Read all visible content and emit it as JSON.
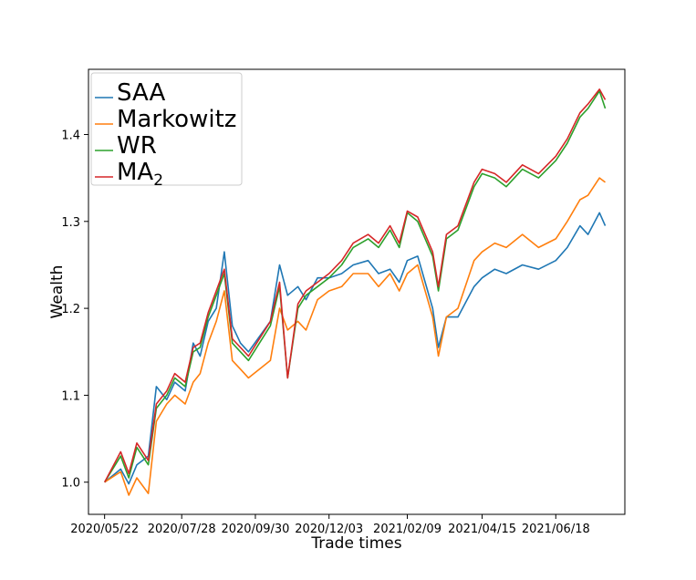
{
  "chart_data": {
    "type": "line",
    "xlabel": "Trade times",
    "ylabel": "Wealth",
    "x_ticks": [
      "2020/05/22",
      "2020/07/28",
      "2020/09/30",
      "2020/12/03",
      "2021/02/09",
      "2021/04/15",
      "2021/06/18"
    ],
    "y_ticks": [
      "1.0",
      "1.1",
      "1.2",
      "1.3",
      "1.4"
    ],
    "ylim": [
      0.963,
      1.475
    ],
    "xlim": [
      "2020/05/08",
      "2021/08/17"
    ],
    "grid": false,
    "legend_position": "top-left",
    "series": [
      {
        "name": "SAA",
        "sub": "",
        "color": "#1f77b4",
        "points": [
          [
            "2020/05/22",
            1.0
          ],
          [
            "2020/06/05",
            1.015
          ],
          [
            "2020/06/12",
            0.998
          ],
          [
            "2020/06/19",
            1.02
          ],
          [
            "2020/06/29",
            1.03
          ],
          [
            "2020/07/06",
            1.11
          ],
          [
            "2020/07/15",
            1.095
          ],
          [
            "2020/07/22",
            1.115
          ],
          [
            "2020/07/31",
            1.105
          ],
          [
            "2020/08/07",
            1.16
          ],
          [
            "2020/08/13",
            1.145
          ],
          [
            "2020/08/20",
            1.185
          ],
          [
            "2020/08/27",
            1.2
          ],
          [
            "2020/09/03",
            1.265
          ],
          [
            "2020/09/10",
            1.18
          ],
          [
            "2020/09/17",
            1.16
          ],
          [
            "2020/09/24",
            1.15
          ],
          [
            "2020/10/13",
            1.185
          ],
          [
            "2020/10/21",
            1.25
          ],
          [
            "2020/10/28",
            1.215
          ],
          [
            "2020/11/06",
            1.225
          ],
          [
            "2020/11/13",
            1.21
          ],
          [
            "2020/11/23",
            1.235
          ],
          [
            "2020/12/03",
            1.235
          ],
          [
            "2020/12/14",
            1.24
          ],
          [
            "2020/12/24",
            1.25
          ],
          [
            "2021/01/06",
            1.255
          ],
          [
            "2021/01/15",
            1.24
          ],
          [
            "2021/01/25",
            1.245
          ],
          [
            "2021/02/02",
            1.23
          ],
          [
            "2021/02/09",
            1.255
          ],
          [
            "2021/02/18",
            1.26
          ],
          [
            "2021/03/03",
            1.2
          ],
          [
            "2021/03/08",
            1.155
          ],
          [
            "2021/03/15",
            1.19
          ],
          [
            "2021/03/25",
            1.19
          ],
          [
            "2021/04/08",
            1.225
          ],
          [
            "2021/04/15",
            1.235
          ],
          [
            "2021/04/26",
            1.245
          ],
          [
            "2021/05/06",
            1.24
          ],
          [
            "2021/05/20",
            1.25
          ],
          [
            "2021/06/03",
            1.245
          ],
          [
            "2021/06/18",
            1.255
          ],
          [
            "2021/06/28",
            1.27
          ],
          [
            "2021/07/09",
            1.295
          ],
          [
            "2021/07/16",
            1.285
          ],
          [
            "2021/07/26",
            1.31
          ],
          [
            "2021/07/31",
            1.295
          ]
        ]
      },
      {
        "name": "Markowitz",
        "sub": "",
        "color": "#ff7f0e",
        "points": [
          [
            "2020/05/22",
            1.0
          ],
          [
            "2020/06/05",
            1.012
          ],
          [
            "2020/06/12",
            0.985
          ],
          [
            "2020/06/19",
            1.005
          ],
          [
            "2020/06/29",
            0.987
          ],
          [
            "2020/07/06",
            1.07
          ],
          [
            "2020/07/15",
            1.09
          ],
          [
            "2020/07/22",
            1.1
          ],
          [
            "2020/07/31",
            1.09
          ],
          [
            "2020/08/07",
            1.115
          ],
          [
            "2020/08/13",
            1.125
          ],
          [
            "2020/08/20",
            1.16
          ],
          [
            "2020/08/27",
            1.185
          ],
          [
            "2020/09/03",
            1.22
          ],
          [
            "2020/09/10",
            1.14
          ],
          [
            "2020/09/17",
            1.13
          ],
          [
            "2020/09/24",
            1.12
          ],
          [
            "2020/10/13",
            1.14
          ],
          [
            "2020/10/21",
            1.2
          ],
          [
            "2020/10/28",
            1.175
          ],
          [
            "2020/11/06",
            1.185
          ],
          [
            "2020/11/13",
            1.175
          ],
          [
            "2020/11/23",
            1.21
          ],
          [
            "2020/12/03",
            1.22
          ],
          [
            "2020/12/14",
            1.225
          ],
          [
            "2020/12/24",
            1.24
          ],
          [
            "2021/01/06",
            1.24
          ],
          [
            "2021/01/15",
            1.225
          ],
          [
            "2021/01/25",
            1.24
          ],
          [
            "2021/02/02",
            1.22
          ],
          [
            "2021/02/09",
            1.24
          ],
          [
            "2021/02/18",
            1.25
          ],
          [
            "2021/03/03",
            1.19
          ],
          [
            "2021/03/08",
            1.145
          ],
          [
            "2021/03/15",
            1.19
          ],
          [
            "2021/03/25",
            1.2
          ],
          [
            "2021/04/08",
            1.255
          ],
          [
            "2021/04/15",
            1.265
          ],
          [
            "2021/04/26",
            1.275
          ],
          [
            "2021/05/06",
            1.27
          ],
          [
            "2021/05/20",
            1.285
          ],
          [
            "2021/06/03",
            1.27
          ],
          [
            "2021/06/18",
            1.28
          ],
          [
            "2021/06/28",
            1.3
          ],
          [
            "2021/07/09",
            1.325
          ],
          [
            "2021/07/16",
            1.33
          ],
          [
            "2021/07/26",
            1.35
          ],
          [
            "2021/07/31",
            1.345
          ]
        ]
      },
      {
        "name": "WR",
        "sub": "",
        "color": "#2ca02c",
        "points": [
          [
            "2020/05/22",
            1.0
          ],
          [
            "2020/06/05",
            1.03
          ],
          [
            "2020/06/12",
            1.005
          ],
          [
            "2020/06/19",
            1.04
          ],
          [
            "2020/06/29",
            1.02
          ],
          [
            "2020/07/06",
            1.085
          ],
          [
            "2020/07/15",
            1.1
          ],
          [
            "2020/07/22",
            1.12
          ],
          [
            "2020/07/31",
            1.11
          ],
          [
            "2020/08/07",
            1.15
          ],
          [
            "2020/08/13",
            1.155
          ],
          [
            "2020/08/20",
            1.19
          ],
          [
            "2020/08/27",
            1.215
          ],
          [
            "2020/09/03",
            1.24
          ],
          [
            "2020/09/10",
            1.16
          ],
          [
            "2020/09/17",
            1.15
          ],
          [
            "2020/09/24",
            1.14
          ],
          [
            "2020/10/13",
            1.18
          ],
          [
            "2020/10/21",
            1.225
          ],
          [
            "2020/10/28",
            1.12
          ],
          [
            "2020/11/06",
            1.2
          ],
          [
            "2020/11/13",
            1.215
          ],
          [
            "2020/11/23",
            1.225
          ],
          [
            "2020/12/03",
            1.235
          ],
          [
            "2020/12/14",
            1.25
          ],
          [
            "2020/12/24",
            1.27
          ],
          [
            "2021/01/06",
            1.28
          ],
          [
            "2021/01/15",
            1.27
          ],
          [
            "2021/01/25",
            1.29
          ],
          [
            "2021/02/02",
            1.27
          ],
          [
            "2021/02/09",
            1.31
          ],
          [
            "2021/02/18",
            1.3
          ],
          [
            "2021/03/03",
            1.26
          ],
          [
            "2021/03/08",
            1.22
          ],
          [
            "2021/03/15",
            1.28
          ],
          [
            "2021/03/25",
            1.29
          ],
          [
            "2021/04/08",
            1.34
          ],
          [
            "2021/04/15",
            1.355
          ],
          [
            "2021/04/26",
            1.35
          ],
          [
            "2021/05/06",
            1.34
          ],
          [
            "2021/05/20",
            1.36
          ],
          [
            "2021/06/03",
            1.35
          ],
          [
            "2021/06/18",
            1.37
          ],
          [
            "2021/06/28",
            1.39
          ],
          [
            "2021/07/09",
            1.42
          ],
          [
            "2021/07/16",
            1.43
          ],
          [
            "2021/07/26",
            1.45
          ],
          [
            "2021/07/31",
            1.43
          ]
        ]
      },
      {
        "name": "MA",
        "sub": "2",
        "color": "#d62728",
        "points": [
          [
            "2020/05/22",
            1.0
          ],
          [
            "2020/06/05",
            1.035
          ],
          [
            "2020/06/12",
            1.01
          ],
          [
            "2020/06/19",
            1.045
          ],
          [
            "2020/06/29",
            1.025
          ],
          [
            "2020/07/06",
            1.09
          ],
          [
            "2020/07/15",
            1.105
          ],
          [
            "2020/07/22",
            1.125
          ],
          [
            "2020/07/31",
            1.115
          ],
          [
            "2020/08/07",
            1.155
          ],
          [
            "2020/08/13",
            1.16
          ],
          [
            "2020/08/20",
            1.195
          ],
          [
            "2020/08/27",
            1.22
          ],
          [
            "2020/09/03",
            1.245
          ],
          [
            "2020/09/10",
            1.165
          ],
          [
            "2020/09/17",
            1.155
          ],
          [
            "2020/09/24",
            1.145
          ],
          [
            "2020/10/13",
            1.185
          ],
          [
            "2020/10/21",
            1.23
          ],
          [
            "2020/10/28",
            1.12
          ],
          [
            "2020/11/06",
            1.205
          ],
          [
            "2020/11/13",
            1.22
          ],
          [
            "2020/11/23",
            1.23
          ],
          [
            "2020/12/03",
            1.24
          ],
          [
            "2020/12/14",
            1.255
          ],
          [
            "2020/12/24",
            1.275
          ],
          [
            "2021/01/06",
            1.285
          ],
          [
            "2021/01/15",
            1.275
          ],
          [
            "2021/01/25",
            1.295
          ],
          [
            "2021/02/02",
            1.275
          ],
          [
            "2021/02/09",
            1.312
          ],
          [
            "2021/02/18",
            1.305
          ],
          [
            "2021/03/03",
            1.265
          ],
          [
            "2021/03/08",
            1.225
          ],
          [
            "2021/03/15",
            1.285
          ],
          [
            "2021/03/25",
            1.295
          ],
          [
            "2021/04/08",
            1.345
          ],
          [
            "2021/04/15",
            1.36
          ],
          [
            "2021/04/26",
            1.355
          ],
          [
            "2021/05/06",
            1.345
          ],
          [
            "2021/05/20",
            1.365
          ],
          [
            "2021/06/03",
            1.355
          ],
          [
            "2021/06/18",
            1.375
          ],
          [
            "2021/06/28",
            1.395
          ],
          [
            "2021/07/09",
            1.425
          ],
          [
            "2021/07/16",
            1.435
          ],
          [
            "2021/07/26",
            1.452
          ],
          [
            "2021/07/31",
            1.44
          ]
        ]
      }
    ]
  }
}
